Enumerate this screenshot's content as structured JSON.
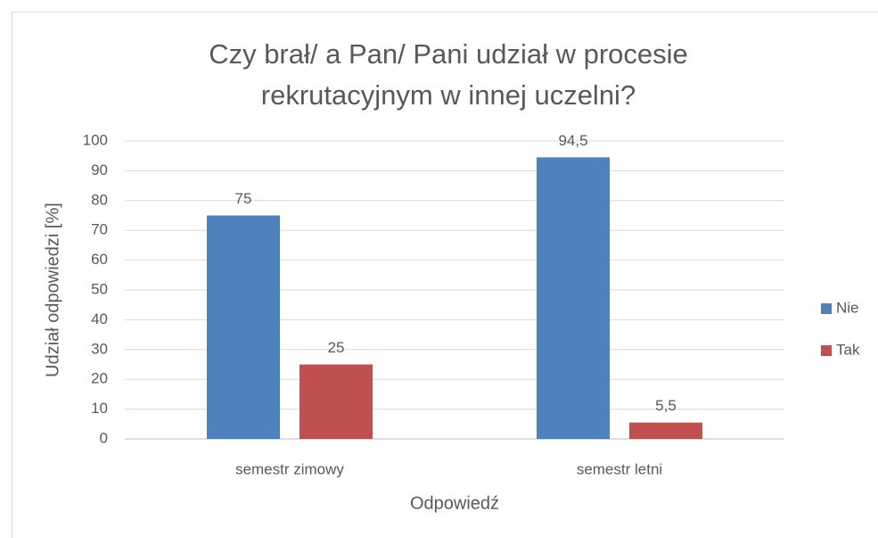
{
  "chart_data": {
    "type": "bar",
    "title": [
      "Czy brał/ a Pan/ Pani udział w procesie",
      "rekrutacyjnym w innej uczelni?"
    ],
    "x_label": "Odpowiedź",
    "y_label": "Udział odpowiedzi [%]",
    "categories": [
      "semestr zimowy",
      "semestr letni"
    ],
    "series": [
      {
        "name": "Nie",
        "color": "#4f81bd",
        "values": [
          75,
          94.5
        ],
        "value_labels": [
          "75",
          "94,5"
        ]
      },
      {
        "name": "Tak",
        "color": "#c0504d",
        "values": [
          25,
          5.5
        ],
        "value_labels": [
          "25",
          "5,5"
        ]
      }
    ],
    "ylim": [
      0,
      100
    ],
    "yticks": [
      0,
      10,
      20,
      30,
      40,
      50,
      60,
      70,
      80,
      90,
      100
    ],
    "grid": true,
    "legend": "right"
  }
}
